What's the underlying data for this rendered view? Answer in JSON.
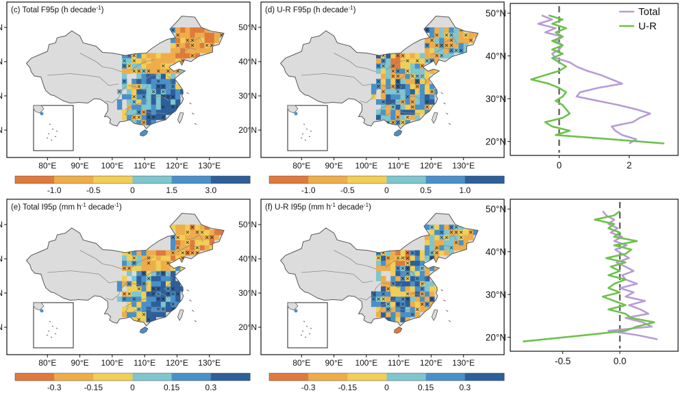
{
  "colors": {
    "land": "#dcdcdc",
    "border": "#8a8a8a",
    "total": "#b89bd6",
    "ur": "#6cc24a",
    "zero_line": "#555555",
    "palette": [
      "#e07a3c",
      "#efad4a",
      "#f1cf56",
      "#7fc6cf",
      "#4a90c8",
      "#2d5f9a"
    ]
  },
  "map_panels": [
    {
      "title": "(c) Total F95p (h decade",
      "sup": "-1",
      "suffix": ")",
      "cbar": [
        "-1.0",
        "-0.5",
        "0",
        "1.5",
        "3.0"
      ],
      "mode": "total"
    },
    {
      "title": "(d) U-R F95p (h decade",
      "sup": "-1",
      "suffix": ")",
      "cbar": [
        "-1.0",
        "-0.5",
        "0",
        "0.5",
        "1.0"
      ],
      "mode": "ur"
    },
    {
      "title": "(e) Total I95p (mm h",
      "sup": "-1",
      "suffix": " decade",
      "sup2": "-1",
      "suffix2": ")",
      "cbar": [
        "-0.3",
        "-0.15",
        "0",
        "0.15",
        "0.3"
      ],
      "mode": "total"
    },
    {
      "title": "(f) U-R I95p (mm h",
      "sup": "-1",
      "suffix": " decade",
      "sup2": "-1",
      "suffix2": ")",
      "cbar": [
        "-0.3",
        "-0.15",
        "0",
        "0.15",
        "0.3"
      ],
      "mode": "ur"
    }
  ],
  "map_axes": {
    "lon_ticks": [
      "80°E",
      "90°E",
      "100°E",
      "110°E",
      "120°E",
      "130°E"
    ],
    "lon_values": [
      80,
      90,
      100,
      110,
      120,
      130
    ],
    "lat_ticks": [
      "20°N",
      "30°N",
      "40°N",
      "50°N"
    ],
    "lat_values": [
      20,
      30,
      40,
      50
    ]
  },
  "chart_data": [
    {
      "type": "line",
      "legend": [
        "Total",
        "U-R"
      ],
      "legend_position": "top-right",
      "xlim": [
        -1.2,
        3.2
      ],
      "ylim": [
        18,
        51
      ],
      "xticks": [
        "0",
        "2"
      ],
      "xtick_values": [
        0,
        2
      ],
      "yticks": [
        "20°N",
        "30°N",
        "40°N",
        "50°N"
      ],
      "ytick_values": [
        20,
        30,
        40,
        50
      ],
      "series": [
        {
          "name": "Total",
          "lat": [
            19.5,
            20.5,
            21.5,
            22.5,
            23.5,
            24.5,
            25.5,
            26.5,
            27.5,
            28.5,
            29.5,
            30.5,
            31.5,
            32.5,
            33.5,
            34.5,
            35.5,
            36.5,
            37.5,
            38.5,
            39.5,
            40.5,
            41.5,
            42.5,
            43.5,
            44.5,
            45.5,
            46.5,
            47.5,
            48.5,
            49.5
          ],
          "x": [
            2.0,
            2.2,
            1.8,
            1.6,
            1.5,
            2.1,
            2.3,
            2.6,
            2.2,
            1.7,
            1.1,
            0.5,
            0.6,
            1.1,
            1.8,
            1.5,
            1.2,
            0.8,
            0.5,
            0.3,
            -0.1,
            -0.2,
            0.0,
            0.1,
            -0.1,
            0.1,
            -0.4,
            -0.1,
            -0.6,
            -0.2,
            -0.5
          ]
        },
        {
          "name": "U-R",
          "lat": [
            19.5,
            20.5,
            21.5,
            22.5,
            23.5,
            24.5,
            25.5,
            26.5,
            27.5,
            28.5,
            29.5,
            30.5,
            31.5,
            32.5,
            33.5,
            34.5,
            35.5,
            36.5,
            37.5,
            38.5,
            39.5,
            40.5,
            41.5,
            42.5,
            43.5,
            44.5,
            45.5,
            46.5,
            47.5,
            48.5,
            49.5
          ],
          "x": [
            3.0,
            1.5,
            -0.1,
            0.3,
            -0.2,
            -0.4,
            0.1,
            0.3,
            0.2,
            0.1,
            -0.1,
            0.1,
            0.2,
            0.0,
            -0.3,
            -0.8,
            -0.4,
            0.0,
            0.2,
            0.0,
            -0.2,
            0.1,
            -0.2,
            0.1,
            -0.2,
            0.1,
            -0.1,
            0.2,
            -0.2,
            0.1,
            -0.3
          ]
        }
      ]
    },
    {
      "type": "line",
      "legend": [],
      "xlim": [
        -0.9,
        0.45
      ],
      "ylim": [
        18,
        51
      ],
      "xticks": [
        "-0.5",
        "0.0"
      ],
      "xtick_values": [
        -0.5,
        0
      ],
      "yticks": [
        "20°N",
        "30°N",
        "40°N",
        "50°N"
      ],
      "ytick_values": [
        20,
        30,
        40,
        50
      ],
      "series": [
        {
          "name": "Total",
          "lat": [
            19.5,
            20.5,
            21.5,
            22.5,
            23.5,
            24.5,
            25.5,
            26.5,
            27.5,
            28.5,
            29.5,
            30.5,
            31.5,
            32.5,
            33.5,
            34.5,
            35.5,
            36.5,
            37.5,
            38.5,
            39.5,
            40.5,
            41.5,
            42.5,
            43.5,
            44.5,
            45.5,
            46.5,
            47.5,
            48.5,
            49.5
          ],
          "x": [
            0.33,
            0.15,
            -0.1,
            0.28,
            0.2,
            0.05,
            0.25,
            0.18,
            0.08,
            0.22,
            0.05,
            0.12,
            0.0,
            0.15,
            0.05,
            0.02,
            0.12,
            0.05,
            -0.03,
            0.08,
            0.02,
            -0.04,
            0.06,
            -0.05,
            0.02,
            -0.08,
            -0.02,
            -0.1,
            -0.05,
            -0.12,
            -0.15
          ]
        },
        {
          "name": "U-R",
          "lat": [
            19.0,
            20.5,
            21.5,
            22.5,
            23.5,
            24.5,
            25.5,
            26.5,
            27.5,
            28.5,
            29.5,
            30.5,
            31.5,
            32.5,
            33.5,
            34.5,
            35.5,
            36.5,
            37.5,
            38.5,
            39.5,
            40.5,
            41.5,
            42.5,
            43.5,
            44.5,
            45.5,
            46.5,
            47.5,
            48.5,
            49.5
          ],
          "x": [
            -0.85,
            -0.3,
            0.05,
            0.15,
            0.3,
            0.1,
            0.05,
            -0.1,
            0.05,
            -0.05,
            -0.15,
            0.0,
            -0.1,
            -0.05,
            0.05,
            -0.1,
            0.0,
            -0.08,
            0.05,
            -0.12,
            0.05,
            0.1,
            -0.05,
            0.15,
            -0.05,
            0.0,
            -0.1,
            -0.05,
            -0.22,
            -0.05,
            0.0
          ]
        }
      ]
    }
  ]
}
